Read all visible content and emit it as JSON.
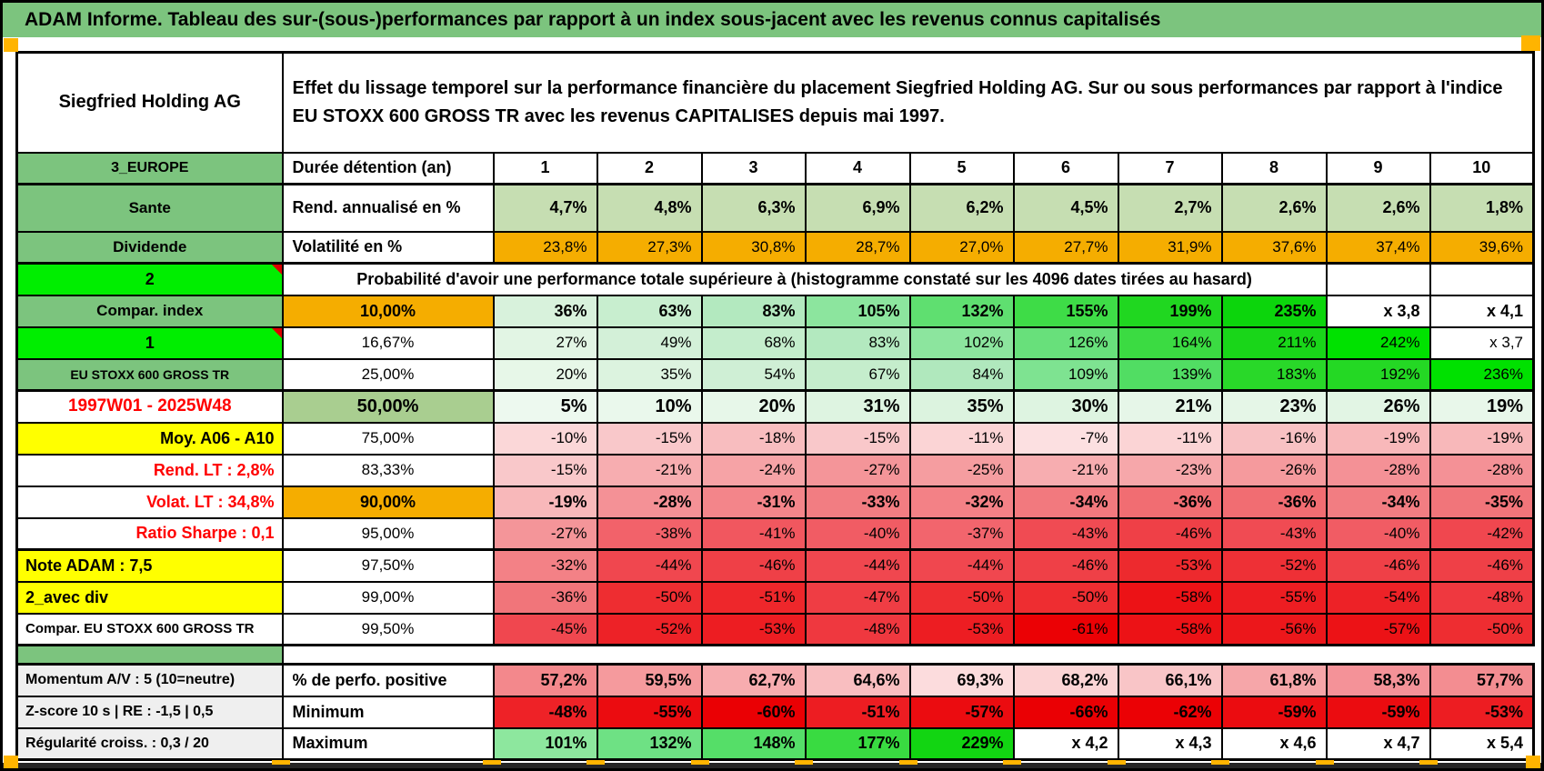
{
  "title": "ADAM Informe. Tableau des sur-(sous-)performances par rapport à un index sous-jacent avec les revenus connus capitalisés",
  "colors": {
    "band_green": "#7cc47e",
    "light_green": "#c6deb2",
    "sage_green": "#a9ce90",
    "orange": "#f5ad00",
    "bright_green": "#00ee00",
    "yellow": "#ffff00",
    "gray_label": "#efefef",
    "red_text": "#ff0000",
    "page_break_orange": "#ffb400",
    "note_red": "#dd0000"
  },
  "header": {
    "name": "Siegfried Holding AG",
    "description": "Effet du lissage temporel sur la performance financière du placement Siegfried Holding AG. Sur ou sous performances par rapport à l'indice EU STOXX 600 GROSS TR avec les revenus CAPITALISES depuis mai 1997."
  },
  "rows": [
    {
      "name": "duree",
      "a": {
        "t": "3_EUROPE",
        "bg": "#7cc47e",
        "bold": true,
        "align": "center",
        "size": 16
      },
      "b": {
        "t": "Durée détention (an)",
        "bold": true,
        "align": "left",
        "size": 18
      },
      "bold": true,
      "size": 18,
      "align": "center",
      "values": [
        "1",
        "2",
        "3",
        "4",
        "5",
        "6",
        "7",
        "8",
        "9",
        "10"
      ],
      "bgs": [
        "#ffffff",
        "#ffffff",
        "#ffffff",
        "#ffffff",
        "#ffffff",
        "#ffffff",
        "#ffffff",
        "#ffffff",
        "#ffffff",
        "#ffffff"
      ]
    },
    {
      "name": "rend",
      "a": {
        "t": "Sante",
        "bg": "#7cc47e",
        "bold": true,
        "align": "center",
        "size": 17
      },
      "b": {
        "t": "Rend. annualisé en %",
        "bold": true,
        "align": "left",
        "size": 18
      },
      "bold": true,
      "size": 18,
      "values": [
        "4,7%",
        "4,8%",
        "6,3%",
        "6,9%",
        "6,2%",
        "4,5%",
        "2,7%",
        "2,6%",
        "2,6%",
        "1,8%"
      ],
      "bgs": [
        "#c6deb2",
        "#c6deb2",
        "#c6deb2",
        "#c6deb2",
        "#c6deb2",
        "#c6deb2",
        "#c6deb2",
        "#c6deb2",
        "#c6deb2",
        "#c6deb2"
      ]
    },
    {
      "name": "volat",
      "a": {
        "t": "Dividende",
        "bg": "#7cc47e",
        "bold": true,
        "align": "center",
        "size": 17
      },
      "b": {
        "t": "Volatilité en %",
        "bold": true,
        "align": "left",
        "size": 18
      },
      "bold": false,
      "size": 17,
      "values": [
        "23,8%",
        "27,3%",
        "30,8%",
        "28,7%",
        "27,0%",
        "27,7%",
        "31,9%",
        "37,6%",
        "37,4%",
        "39,6%"
      ],
      "bgs": [
        "#f5ad00",
        "#f5ad00",
        "#f5ad00",
        "#f5ad00",
        "#f5ad00",
        "#f5ad00",
        "#f5ad00",
        "#f5ad00",
        "#f5ad00",
        "#f5ad00"
      ]
    },
    {
      "name": "proba",
      "type": "span",
      "a": {
        "t": "2",
        "bg": "#00ee00",
        "bold": true,
        "align": "center",
        "size": 18,
        "marker": true
      },
      "span_text": "Probabilité d'avoir une performance totale supérieure à (histogramme constaté sur les 4096 dates tirées au hasard)",
      "tail": [
        "",
        ""
      ]
    },
    {
      "name": "p10",
      "a": {
        "t": "Compar. index",
        "bg": "#7cc47e",
        "bold": true,
        "align": "center",
        "size": 17
      },
      "b": {
        "t": "10,00%",
        "bg": "#f5ad00",
        "bold": true,
        "align": "center",
        "size": 18
      },
      "bold": true,
      "size": 18,
      "values": [
        "36%",
        "63%",
        "83%",
        "105%",
        "132%",
        "155%",
        "199%",
        "235%",
        "x 3,8",
        "x 4,1"
      ],
      "bgs": [
        "#d8f2dc",
        "#c8eecf",
        "#b3e9bf",
        "#8ce59e",
        "#5fdf70",
        "#3edc47",
        "#20d720",
        "#0cd50c",
        "#ffffff",
        "#ffffff"
      ]
    },
    {
      "name": "p16",
      "a": {
        "t": "1",
        "bg": "#00ee00",
        "bold": true,
        "align": "center",
        "size": 18,
        "marker": true
      },
      "b": {
        "t": "16,67%",
        "align": "center",
        "size": 17
      },
      "bold": false,
      "size": 17,
      "values": [
        "27%",
        "49%",
        "68%",
        "83%",
        "102%",
        "126%",
        "164%",
        "211%",
        "242%",
        "x 3,7"
      ],
      "bgs": [
        "#e2f5e4",
        "#d3f0d8",
        "#c4edcc",
        "#b3e9bf",
        "#8ce59e",
        "#68e07b",
        "#3bdb42",
        "#19d619",
        "#00e200",
        "#ffffff"
      ]
    },
    {
      "name": "p25",
      "a": {
        "t": "EU STOXX 600 GROSS TR",
        "bg": "#7cc47e",
        "bold": true,
        "align": "center",
        "size": 14
      },
      "b": {
        "t": "25,00%",
        "align": "center",
        "size": 17
      },
      "bold": false,
      "size": 17,
      "values": [
        "20%",
        "35%",
        "54%",
        "67%",
        "84%",
        "109%",
        "139%",
        "183%",
        "192%",
        "236%"
      ],
      "bgs": [
        "#e7f7e8",
        "#dcf3df",
        "#cfefd5",
        "#c5edcc",
        "#b0e8bd",
        "#7ee391",
        "#51dd63",
        "#29d829",
        "#24d824",
        "#00e100"
      ]
    },
    {
      "name": "p50",
      "a": {
        "t": "1997W01 - 2025W48",
        "color": "#ff0000",
        "bold": true,
        "align": "center",
        "size": 19
      },
      "b": {
        "t": "50,00%",
        "bg": "#a9ce90",
        "bold": true,
        "align": "center",
        "size": 20
      },
      "bold": true,
      "size": 20,
      "values": [
        "5%",
        "10%",
        "20%",
        "31%",
        "35%",
        "30%",
        "21%",
        "23%",
        "26%",
        "19%"
      ],
      "bgs": [
        "#edf9ef",
        "#eaf8ec",
        "#e7f7e9",
        "#def4e1",
        "#dcf3df",
        "#def4e1",
        "#e6f6e8",
        "#e5f6e7",
        "#e2f5e4",
        "#e8f7ea"
      ]
    },
    {
      "name": "p75",
      "a": {
        "t": "Moy. A06 - A10",
        "bg": "#ffff00",
        "bold": true,
        "align": "right",
        "size": 18
      },
      "b": {
        "t": "75,00%",
        "align": "center",
        "size": 17
      },
      "bold": false,
      "size": 17,
      "values": [
        "-10%",
        "-15%",
        "-18%",
        "-15%",
        "-11%",
        "-7%",
        "-11%",
        "-16%",
        "-19%",
        "-19%"
      ],
      "bgs": [
        "#fbd7d8",
        "#f9c8ca",
        "#f8bdbf",
        "#f9c8ca",
        "#fbd4d5",
        "#fce0e1",
        "#fbd4d5",
        "#f8c1c3",
        "#f8b8ba",
        "#f8b8ba"
      ]
    },
    {
      "name": "p83",
      "a": {
        "t": "Rend. LT :   2,8%",
        "color": "#ff0000",
        "bold": true,
        "align": "right",
        "size": 18
      },
      "b": {
        "t": "83,33%",
        "align": "center",
        "size": 17
      },
      "bold": false,
      "size": 17,
      "values": [
        "-15%",
        "-21%",
        "-24%",
        "-27%",
        "-25%",
        "-21%",
        "-23%",
        "-26%",
        "-28%",
        "-28%"
      ],
      "bgs": [
        "#f9c8ca",
        "#f7adb0",
        "#f6a3a6",
        "#f49599",
        "#f59da0",
        "#f7adb0",
        "#f6a7aa",
        "#f59a9d",
        "#f49196",
        "#f49196"
      ]
    },
    {
      "name": "p90",
      "a": {
        "t": "Volat. LT :   34,8%",
        "color": "#ff0000",
        "bold": true,
        "align": "right",
        "size": 18
      },
      "b": {
        "t": "90,00%",
        "bg": "#f5ad00",
        "bold": true,
        "align": "center",
        "size": 18
      },
      "bold": true,
      "size": 18,
      "values": [
        "-19%",
        "-28%",
        "-31%",
        "-33%",
        "-32%",
        "-34%",
        "-36%",
        "-36%",
        "-34%",
        "-35%"
      ],
      "bgs": [
        "#f8b8ba",
        "#f49196",
        "#f3858a",
        "#f27d82",
        "#f38186",
        "#f2797e",
        "#f16d72",
        "#f16d72",
        "#f27d82",
        "#f1757a"
      ]
    },
    {
      "name": "p95",
      "a": {
        "t": "Ratio Sharpe :   0,1",
        "color": "#ff0000",
        "bold": true,
        "align": "right",
        "size": 18
      },
      "b": {
        "t": "95,00%",
        "align": "center",
        "size": 17
      },
      "bold": false,
      "size": 17,
      "values": [
        "-27%",
        "-38%",
        "-41%",
        "-40%",
        "-37%",
        "-43%",
        "-46%",
        "-43%",
        "-40%",
        "-42%"
      ],
      "bgs": [
        "#f49599",
        "#f2626a",
        "#f1575f",
        "#f15c64",
        "#f2656d",
        "#f04b53",
        "#ef4047",
        "#f04b53",
        "#f15c64",
        "#f0474f"
      ]
    },
    {
      "name": "p975",
      "a": {
        "t": "Note ADAM : 7,5",
        "bg": "#ffff00",
        "bold": true,
        "align": "left",
        "size": 18
      },
      "b": {
        "t": "97,50%",
        "align": "center",
        "size": 17
      },
      "bold": false,
      "size": 17,
      "values": [
        "-32%",
        "-44%",
        "-46%",
        "-44%",
        "-44%",
        "-46%",
        "-53%",
        "-52%",
        "-46%",
        "-46%"
      ],
      "bgs": [
        "#f38186",
        "#f0474f",
        "#ef4047",
        "#f0474f",
        "#f0474f",
        "#ef4047",
        "#ed2a2e",
        "#ee3036",
        "#ef4047",
        "#ef4047"
      ]
    },
    {
      "name": "p99",
      "a": {
        "t": "2_avec div",
        "bg": "#ffff00",
        "bold": true,
        "align": "left",
        "size": 18
      },
      "b": {
        "t": "99,00%",
        "align": "center",
        "size": 17
      },
      "bold": false,
      "size": 17,
      "values": [
        "-36%",
        "-50%",
        "-51%",
        "-47%",
        "-50%",
        "-50%",
        "-58%",
        "-55%",
        "-54%",
        "-48%"
      ],
      "bgs": [
        "#f1757a",
        "#ee2d31",
        "#ee272b",
        "#ef3d44",
        "#ee2d31",
        "#ee2d31",
        "#ec1216",
        "#ed1d22",
        "#ed2227",
        "#ef383f"
      ]
    },
    {
      "name": "p995",
      "a": {
        "t": "Compar. EU STOXX 600 GROSS TR",
        "bold": true,
        "align": "left",
        "size": 15
      },
      "b": {
        "t": "99,50%",
        "align": "center",
        "size": 17
      },
      "bold": false,
      "size": 17,
      "values": [
        "-45%",
        "-52%",
        "-53%",
        "-48%",
        "-53%",
        "-61%",
        "-58%",
        "-56%",
        "-57%",
        "-50%"
      ],
      "bgs": [
        "#f0474f",
        "#ed2227",
        "#ed1d22",
        "#ef383f",
        "#ed1d22",
        "#eb0105",
        "#ec1216",
        "#ec171b",
        "#ec1216",
        "#ee2d31"
      ]
    },
    {
      "name": "separator",
      "type": "separator"
    },
    {
      "name": "perfo",
      "a": {
        "t": "Momentum A/V : 5 (10=neutre)",
        "bg": "#efefef",
        "bold": true,
        "align": "left",
        "size": 16
      },
      "b": {
        "t": "% de perfo. positive",
        "bold": true,
        "align": "left",
        "size": 18
      },
      "bold": true,
      "size": 18,
      "values": [
        "57,2%",
        "59,5%",
        "62,7%",
        "64,6%",
        "69,3%",
        "68,2%",
        "66,1%",
        "61,8%",
        "58,3%",
        "57,7%"
      ],
      "bgs": [
        "#f3888c",
        "#f59a9d",
        "#f7acaf",
        "#f9bec0",
        "#fcdcdd",
        "#fbd4d5",
        "#f9c5c7",
        "#f6a6a9",
        "#f49298",
        "#f38d91"
      ]
    },
    {
      "name": "minimum",
      "a": {
        "t": "Z-score 10 s | RE : -1,5 | 0,5",
        "bg": "#efefef",
        "bold": true,
        "align": "left",
        "size": 16
      },
      "b": {
        "t": "Minimum",
        "bold": true,
        "align": "left",
        "size": 18
      },
      "bold": true,
      "size": 18,
      "values": [
        "-48%",
        "-55%",
        "-60%",
        "-51%",
        "-57%",
        "-66%",
        "-62%",
        "-59%",
        "-59%",
        "-53%"
      ],
      "bgs": [
        "#ee2227",
        "#eb0c10",
        "#ea0004",
        "#ed1d22",
        "#eb0c10",
        "#ea0004",
        "#eb0105",
        "#eb0c10",
        "#eb0c10",
        "#ed1d22"
      ]
    },
    {
      "name": "maximum",
      "a": {
        "t": "Régularité croiss. : 0,3 / 20",
        "bg": "#efefef",
        "bold": true,
        "align": "left",
        "size": 16
      },
      "b": {
        "t": "Maximum",
        "bold": true,
        "align": "left",
        "size": 18
      },
      "bold": true,
      "size": 18,
      "values": [
        "101%",
        "132%",
        "148%",
        "177%",
        "229%",
        "x 4,2",
        "x 4,3",
        "x 4,6",
        "x 4,7",
        "x 5,4"
      ],
      "bgs": [
        "#8de79e",
        "#6ee184",
        "#55de68",
        "#39db41",
        "#12d512",
        "#ffffff",
        "#ffffff",
        "#ffffff",
        "#ffffff",
        "#ffffff"
      ]
    }
  ]
}
